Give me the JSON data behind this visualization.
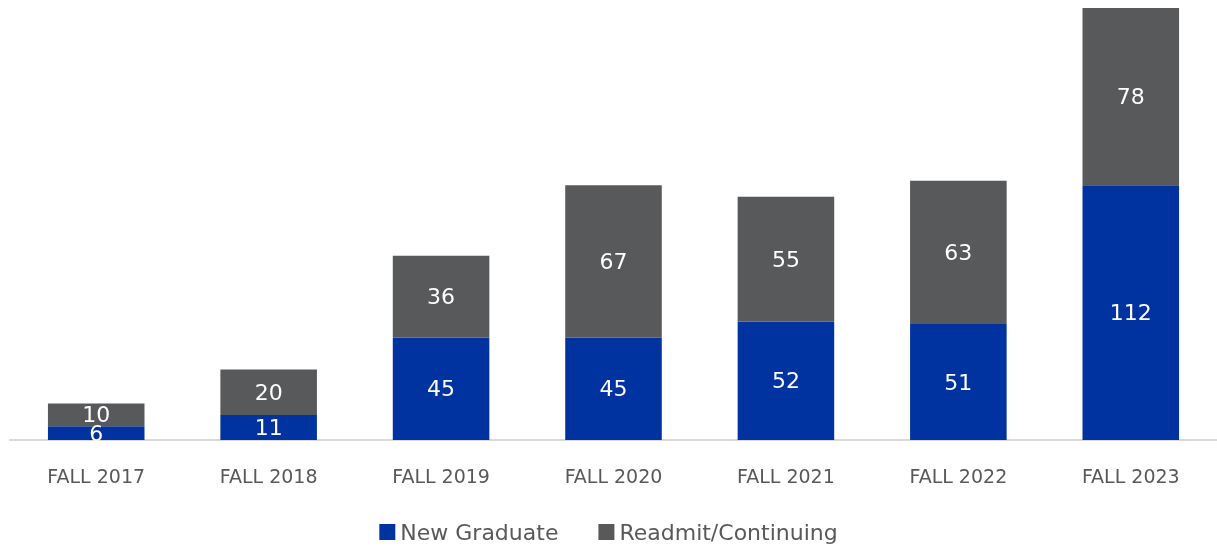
{
  "chart_data": {
    "type": "bar",
    "stacked": true,
    "categories": [
      "FALL 2017",
      "FALL 2018",
      "FALL 2019",
      "FALL 2020",
      "FALL 2021",
      "FALL 2022",
      "FALL 2023"
    ],
    "series": [
      {
        "name": "New Graduate",
        "color": "#0033a0",
        "values": [
          6,
          11,
          45,
          45,
          52,
          51,
          112
        ]
      },
      {
        "name": "Readmit/Continuing",
        "color": "#58595b",
        "values": [
          10,
          20,
          36,
          67,
          55,
          63,
          78
        ]
      }
    ],
    "data_labels": true,
    "legend": "bottom"
  }
}
